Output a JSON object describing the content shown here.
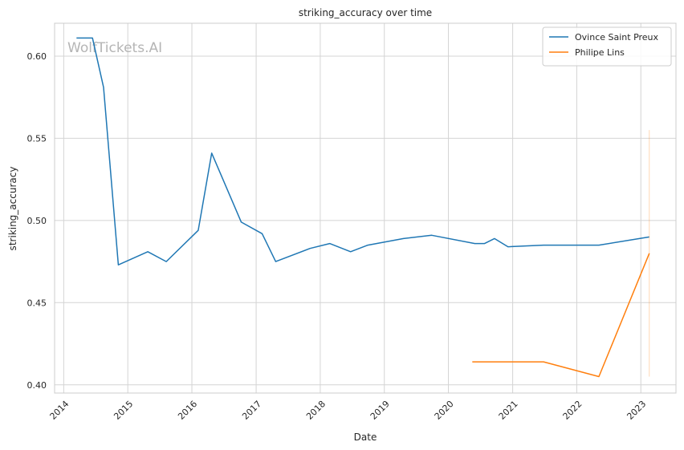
{
  "chart_data": {
    "type": "line",
    "title": "striking_accuracy over time",
    "xlabel": "Date",
    "ylabel": "striking_accuracy",
    "watermark": "WolfTickets.AI",
    "x_ticks": [
      "2014",
      "2015",
      "2016",
      "2017",
      "2018",
      "2019",
      "2020",
      "2021",
      "2022",
      "2023"
    ],
    "y_ticks": [
      "0.40",
      "0.45",
      "0.50",
      "0.55",
      "0.60"
    ],
    "xlim": [
      "2013-11-10",
      "2023-07-20"
    ],
    "ylim": [
      0.395,
      0.62
    ],
    "grid": true,
    "legend_position": "top-right",
    "series": [
      {
        "name": "Ovince Saint Preux",
        "color": "#1f77b4",
        "points": [
          {
            "x": "2014-03-15",
            "y": 0.611
          },
          {
            "x": "2014-06-14",
            "y": 0.611
          },
          {
            "x": "2014-08-16",
            "y": 0.581
          },
          {
            "x": "2014-11-08",
            "y": 0.473
          },
          {
            "x": "2015-04-25",
            "y": 0.481
          },
          {
            "x": "2015-08-08",
            "y": 0.475
          },
          {
            "x": "2016-02-06",
            "y": 0.494
          },
          {
            "x": "2016-04-23",
            "y": 0.541
          },
          {
            "x": "2016-10-08",
            "y": 0.499
          },
          {
            "x": "2017-02-04",
            "y": 0.492
          },
          {
            "x": "2017-04-22",
            "y": 0.475
          },
          {
            "x": "2017-11-04",
            "y": 0.483
          },
          {
            "x": "2018-02-24",
            "y": 0.486
          },
          {
            "x": "2018-06-23",
            "y": 0.481
          },
          {
            "x": "2018-09-29",
            "y": 0.485
          },
          {
            "x": "2019-04-20",
            "y": 0.489
          },
          {
            "x": "2019-09-28",
            "y": 0.491
          },
          {
            "x": "2020-05-30",
            "y": 0.486
          },
          {
            "x": "2020-07-25",
            "y": 0.486
          },
          {
            "x": "2020-09-19",
            "y": 0.489
          },
          {
            "x": "2020-12-05",
            "y": 0.484
          },
          {
            "x": "2021-06-26",
            "y": 0.485
          },
          {
            "x": "2022-05-07",
            "y": 0.485
          },
          {
            "x": "2023-02-18",
            "y": 0.49
          }
        ]
      },
      {
        "name": "Philipe Lins",
        "color": "#ff7f0e",
        "points": [
          {
            "x": "2020-05-16",
            "y": 0.414
          },
          {
            "x": "2021-06-26",
            "y": 0.414
          },
          {
            "x": "2022-05-07",
            "y": 0.405
          },
          {
            "x": "2023-02-18",
            "y": 0.48
          }
        ],
        "error_band": {
          "x": "2023-02-18",
          "low": 0.405,
          "high": 0.555
        }
      }
    ]
  }
}
